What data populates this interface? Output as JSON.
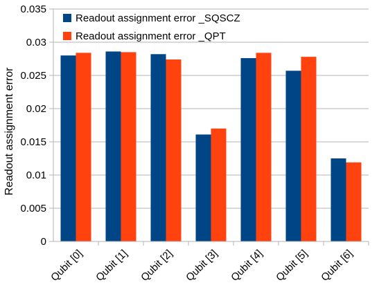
{
  "chart_data": {
    "type": "bar",
    "categories": [
      "Qubit [0]",
      "Qubit [1]",
      "Qubit [2]",
      "Qubit [3]",
      "Qubit [4]",
      "Qubit [5]",
      "Qubit [6]"
    ],
    "series": [
      {
        "name": "Readout assignment error _SQSCZ",
        "color": "#004586",
        "values": [
          0.028,
          0.0286,
          0.0282,
          0.0161,
          0.0276,
          0.0257,
          0.0125
        ]
      },
      {
        "name": "Readout assignment error _QPT",
        "color": "#ff420e",
        "values": [
          0.0284,
          0.0285,
          0.0274,
          0.017,
          0.0284,
          0.0278,
          0.0119
        ]
      }
    ],
    "ylabel": "Readout assignment error",
    "ylim": [
      0,
      0.035
    ],
    "yticks": [
      "0",
      "0.005",
      "0.01",
      "0.015",
      "0.02",
      "0.025",
      "0.03",
      "0.035"
    ],
    "grid": true,
    "legend_position": "top-left"
  }
}
